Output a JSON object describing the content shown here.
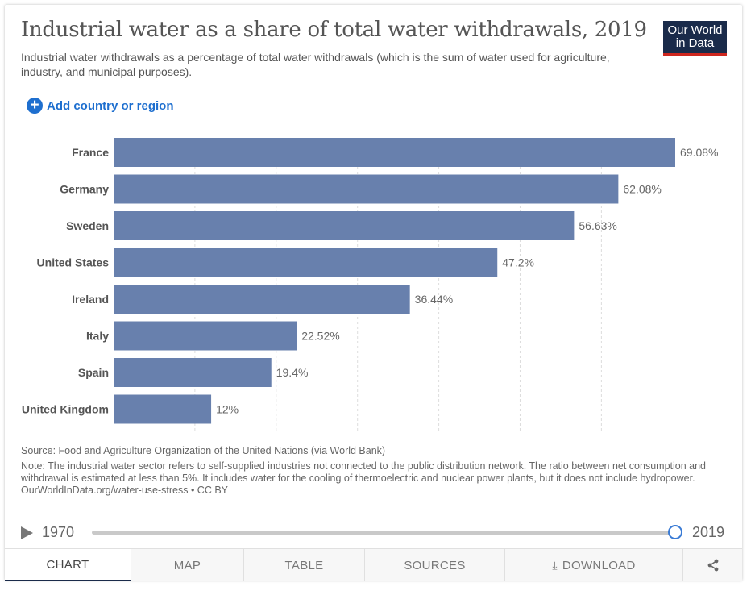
{
  "header": {
    "title": "Industrial water as a share of total water withdrawals, 2019",
    "subtitle": "Industrial water withdrawals as a percentage of total water withdrawals (which is the sum of water used for agriculture, industry, and municipal purposes).",
    "logo_line1": "Our World",
    "logo_line2": "in Data"
  },
  "controls": {
    "add_label": "Add country or region",
    "add_icon": "plus-circle-icon"
  },
  "chart_data": {
    "type": "bar",
    "orientation": "horizontal",
    "categories": [
      "France",
      "Germany",
      "Sweden",
      "United States",
      "Ireland",
      "Italy",
      "Spain",
      "United Kingdom"
    ],
    "values": [
      69.08,
      62.08,
      56.63,
      47.2,
      36.44,
      22.52,
      19.4,
      12
    ],
    "value_labels": [
      "69.08%",
      "62.08%",
      "56.63%",
      "47.2%",
      "36.44%",
      "22.52%",
      "19.4%",
      "12%"
    ],
    "xlim": [
      0,
      69.08
    ],
    "grid_values": [
      10,
      20,
      30,
      40,
      50,
      60
    ],
    "bar_color": "#6880ad",
    "grid": true
  },
  "footer": {
    "source": "Source: Food and Agriculture Organization of the United Nations (via World Bank)",
    "note": "Note: The industrial water sector refers to self-supplied industries not connected to the public distribution network. The ratio between net consumption and withdrawal is estimated at less than 5%. It includes water for the cooling of thermoelectric and nuclear power plants, but it does not include hydropower.",
    "url": "OurWorldInData.org/water-use-stress • CC BY"
  },
  "timeline": {
    "start_year": "1970",
    "end_year": "2019",
    "position": 1.0
  },
  "tabs": [
    {
      "label": "CHART"
    },
    {
      "label": "MAP"
    },
    {
      "label": "TABLE"
    },
    {
      "label": "SOURCES"
    },
    {
      "label": "DOWNLOAD"
    }
  ],
  "colors": {
    "accent": "#1e6fcf",
    "logo_bg": "#1a2b4a",
    "logo_stripe": "#ce261e"
  }
}
